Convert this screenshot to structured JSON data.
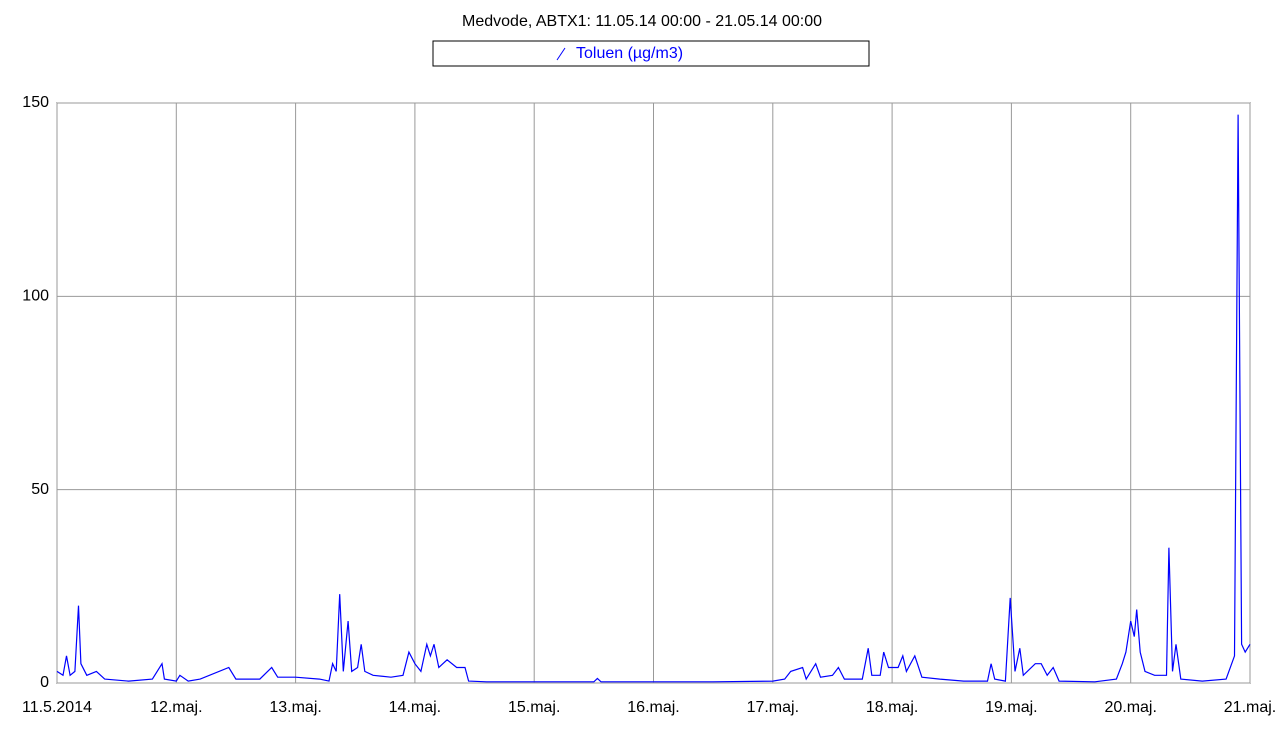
{
  "chart_data": {
    "type": "line",
    "title": "Medvode, ABTX1: 11.05.14 00:00 - 21.05.14 00:00",
    "xlim": [
      0,
      10
    ],
    "xticks": [
      {
        "value": 0,
        "label": "11.5.2014"
      },
      {
        "value": 1,
        "label": "12.maj."
      },
      {
        "value": 2,
        "label": "13.maj."
      },
      {
        "value": 3,
        "label": "14.maj."
      },
      {
        "value": 4,
        "label": "15.maj."
      },
      {
        "value": 5,
        "label": "16.maj."
      },
      {
        "value": 6,
        "label": "17.maj."
      },
      {
        "value": 7,
        "label": "18.maj."
      },
      {
        "value": 8,
        "label": "19.maj."
      },
      {
        "value": 9,
        "label": "20.maj."
      },
      {
        "value": 10,
        "label": "21.maj."
      }
    ],
    "ylim": [
      0,
      150
    ],
    "yticks": [
      0,
      50,
      100,
      150
    ],
    "grid": true,
    "x": [
      0,
      0.05,
      0.08,
      0.11,
      0.15,
      0.18,
      0.2,
      0.25,
      0.33,
      0.4,
      0.6,
      0.8,
      0.88,
      0.9,
      1.0,
      1.03,
      1.1,
      1.2,
      1.44,
      1.5,
      1.7,
      1.8,
      1.85,
      2.0,
      2.2,
      2.28,
      2.31,
      2.34,
      2.37,
      2.4,
      2.44,
      2.47,
      2.52,
      2.55,
      2.58,
      2.65,
      2.8,
      2.9,
      2.95,
      3.0,
      3.05,
      3.1,
      3.13,
      3.16,
      3.2,
      3.27,
      3.35,
      3.42,
      3.45,
      3.6,
      4.0,
      4.5,
      4.53,
      4.56,
      5.0,
      5.5,
      6.0,
      6.1,
      6.15,
      6.25,
      6.28,
      6.36,
      6.4,
      6.5,
      6.55,
      6.6,
      6.75,
      6.8,
      6.83,
      6.9,
      6.93,
      6.97,
      7.05,
      7.09,
      7.12,
      7.19,
      7.25,
      7.4,
      7.6,
      7.8,
      7.83,
      7.86,
      7.95,
      7.99,
      8.03,
      8.07,
      8.1,
      8.2,
      8.25,
      8.3,
      8.35,
      8.4,
      8.7,
      8.88,
      8.93,
      8.96,
      9.0,
      9.03,
      9.05,
      9.08,
      9.12,
      9.2,
      9.3,
      9.32,
      9.35,
      9.38,
      9.42,
      9.6,
      9.8,
      9.87,
      9.9,
      9.93,
      9.96,
      10.0
    ],
    "series": [
      {
        "name": "Toluen (µg/m3)",
        "color": "#0000ff",
        "values": [
          3,
          2,
          7,
          2,
          3,
          20,
          5,
          2,
          3,
          1,
          0.5,
          1,
          5,
          1,
          0.5,
          2,
          0.5,
          1,
          4,
          1,
          1,
          4,
          1.5,
          1.5,
          1,
          0.5,
          5,
          3,
          23,
          3,
          16,
          3,
          4,
          10,
          3,
          2,
          1.5,
          2,
          8,
          5,
          3,
          10,
          7,
          10,
          4,
          6,
          4,
          4,
          0.5,
          0.3,
          0.3,
          0.3,
          1.2,
          0.3,
          0.3,
          0.3,
          0.5,
          1,
          3,
          4,
          1,
          5,
          1.5,
          2,
          4,
          1,
          1,
          9,
          2,
          2,
          8,
          4,
          4,
          7,
          3,
          7,
          1.5,
          1,
          0.5,
          0.5,
          5,
          1,
          0.5,
          22,
          3,
          9,
          2,
          5,
          5,
          2,
          4,
          0.5,
          0.3,
          1,
          5,
          8,
          16,
          12,
          19,
          8,
          3,
          2,
          2,
          35,
          3,
          10,
          1,
          0.5,
          1,
          7,
          147,
          10,
          8,
          10
        ]
      }
    ]
  }
}
